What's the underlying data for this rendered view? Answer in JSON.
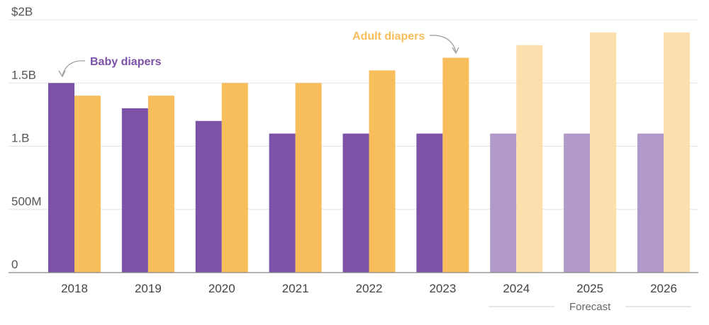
{
  "chart_data": {
    "type": "bar",
    "categories": [
      "2018",
      "2019",
      "2020",
      "2021",
      "2022",
      "2023",
      "2024",
      "2025",
      "2026"
    ],
    "series": [
      {
        "name": "Baby diapers",
        "values": [
          1.5,
          1.3,
          1.2,
          1.1,
          1.1,
          1.1,
          1.1,
          1.1,
          1.1
        ],
        "color": "#7B52A6",
        "forecast_color": "#B19AC9"
      },
      {
        "name": "Adult diapers",
        "values": [
          1.4,
          1.4,
          1.5,
          1.5,
          1.6,
          1.7,
          1.8,
          1.9,
          1.9
        ],
        "color": "#F8BE5C",
        "forecast_color": "#FCDFAC"
      }
    ],
    "units": "billion USD",
    "ylim": [
      0,
      2
    ],
    "yticks": [
      {
        "value": 0,
        "label": "0"
      },
      {
        "value": 0.5,
        "label": "500M"
      },
      {
        "value": 1,
        "label": "1.B"
      },
      {
        "value": 1.5,
        "label": "1.5B"
      },
      {
        "value": 2,
        "label": "$2B"
      }
    ],
    "forecast_categories": [
      "2024",
      "2025",
      "2026"
    ],
    "forecast_label": "Forecast",
    "grid": true,
    "legend": "inline annotations with arrows"
  }
}
